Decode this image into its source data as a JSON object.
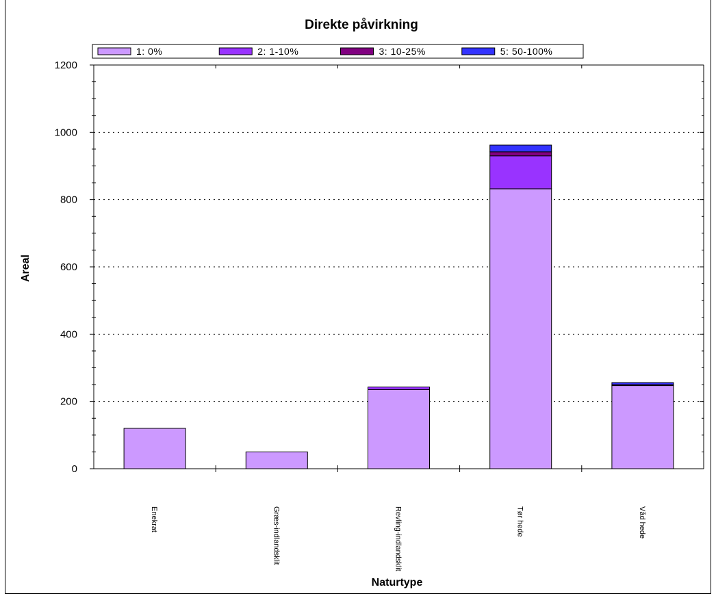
{
  "chart_data": {
    "type": "bar",
    "stacked": true,
    "title": "Direkte påvirkning",
    "xlabel": "Naturtype",
    "ylabel": "Areal",
    "ylim": [
      0,
      1200
    ],
    "yticks": [
      0,
      200,
      400,
      600,
      800,
      1000,
      1200
    ],
    "grid": "horizontal-dotted",
    "legend_position": "top",
    "categories": [
      "Enekrat",
      "Græs-indlandsklit",
      "Revling-indlandsklit",
      "Tør hede",
      "Våd hede"
    ],
    "series": [
      {
        "name": "1: 0%",
        "color": "#cc99ff",
        "values": [
          120,
          50,
          235,
          832,
          247
        ]
      },
      {
        "name": "2: 1-10%",
        "color": "#9933ff",
        "values": [
          0,
          0,
          8,
          98,
          0
        ]
      },
      {
        "name": "3: 10-25%",
        "color": "#800080",
        "values": [
          0,
          0,
          0,
          12,
          3
        ]
      },
      {
        "name": "5: 50-100%",
        "color": "#3333ff",
        "values": [
          0,
          0,
          0,
          20,
          6
        ]
      }
    ]
  }
}
